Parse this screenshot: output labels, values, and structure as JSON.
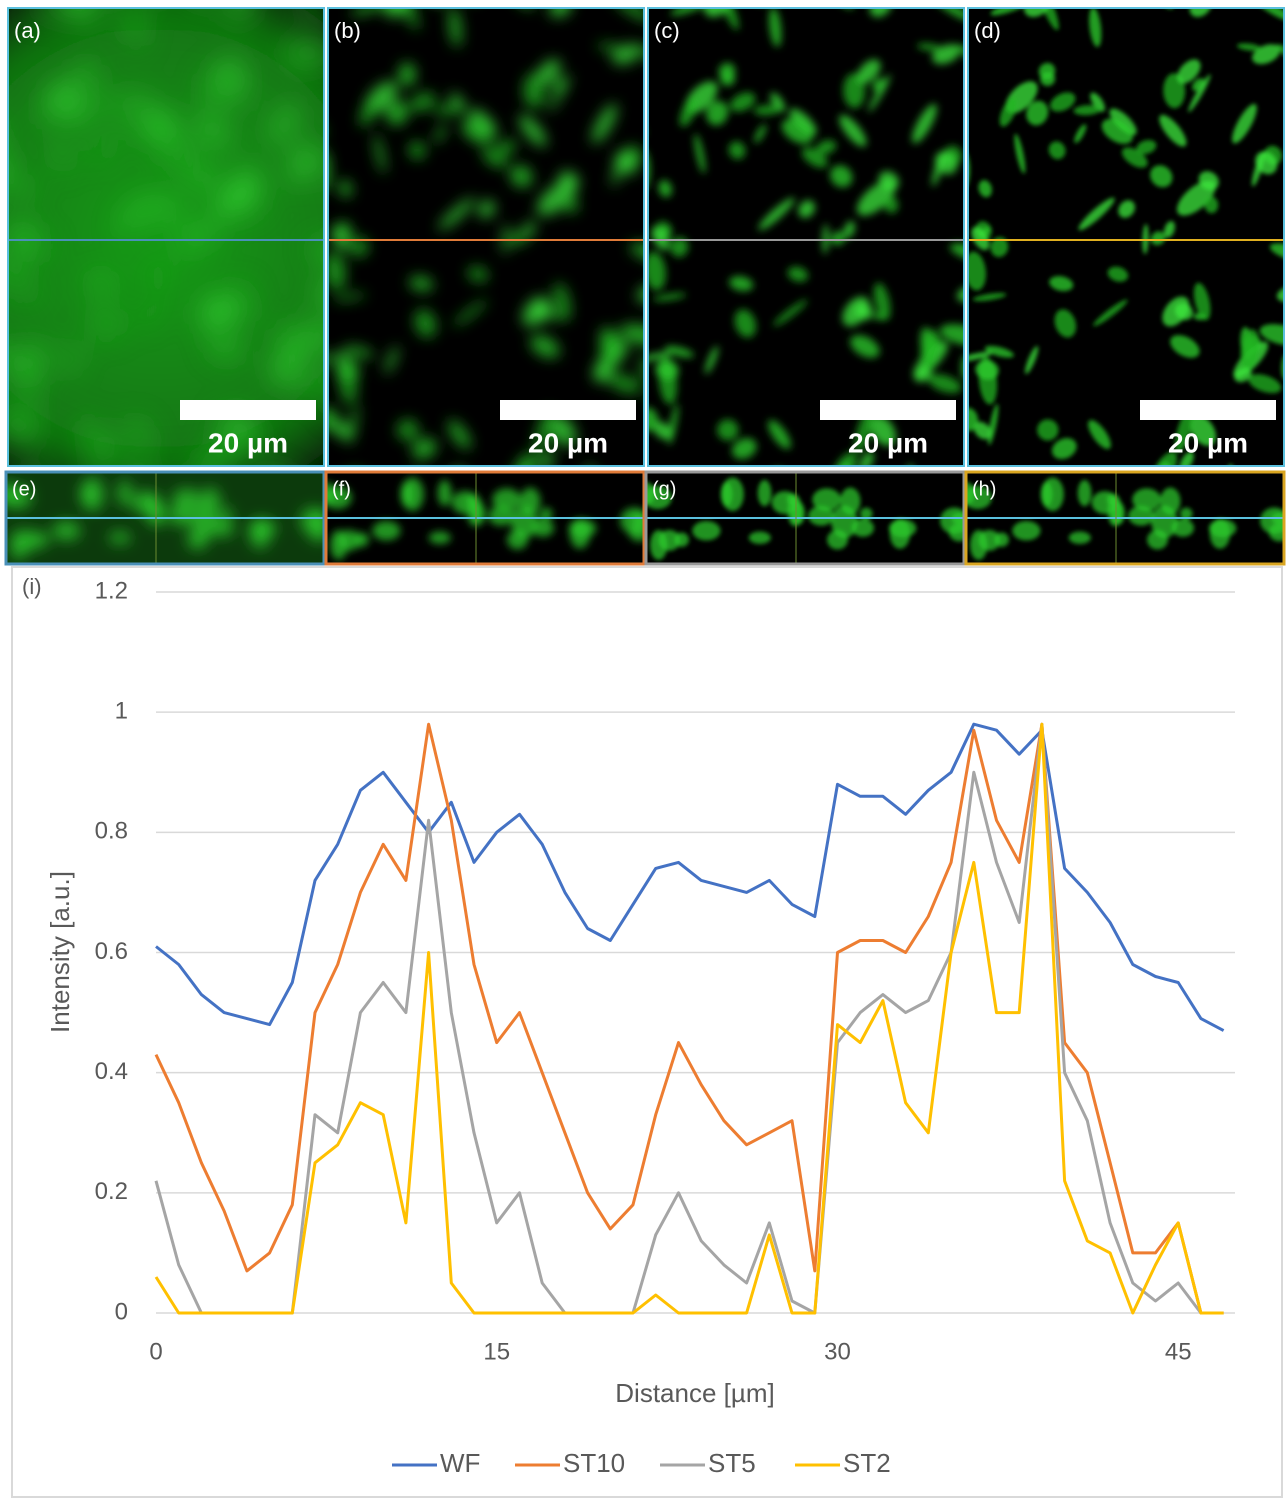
{
  "panels": [
    {
      "label": "(a)",
      "scale": "20 µm"
    },
    {
      "label": "(b)",
      "scale": "20 µm"
    },
    {
      "label": "(c)",
      "scale": "20 µm"
    },
    {
      "label": "(d)",
      "scale": "20 µm"
    }
  ],
  "sections": [
    {
      "label": "(e)"
    },
    {
      "label": "(f)"
    },
    {
      "label": "(g)"
    },
    {
      "label": "(h)"
    }
  ],
  "chart_data": {
    "type": "line",
    "panel_label": "(i)",
    "x_label": "Distance [µm]",
    "y_label": "Intensity [a.u.]",
    "x": [
      0,
      1,
      2,
      3,
      4,
      5,
      6,
      7,
      8,
      9,
      10,
      11,
      12,
      13,
      14,
      15,
      16,
      17,
      18,
      19,
      20,
      21,
      22,
      23,
      24,
      25,
      26,
      27,
      28,
      29,
      30,
      31,
      32,
      33,
      34,
      35,
      36,
      37,
      38,
      39,
      40,
      41,
      42,
      43,
      44,
      45,
      46,
      47
    ],
    "series": [
      {
        "name": "WF",
        "color": "#4472c4",
        "values": [
          0.61,
          0.58,
          0.53,
          0.5,
          0.49,
          0.48,
          0.55,
          0.72,
          0.78,
          0.87,
          0.9,
          0.85,
          0.8,
          0.85,
          0.75,
          0.8,
          0.83,
          0.78,
          0.7,
          0.64,
          0.62,
          0.68,
          0.74,
          0.75,
          0.72,
          0.71,
          0.7,
          0.72,
          0.68,
          0.66,
          0.88,
          0.86,
          0.86,
          0.83,
          0.87,
          0.9,
          0.98,
          0.97,
          0.93,
          0.97,
          0.74,
          0.7,
          0.65,
          0.58,
          0.56,
          0.55,
          0.49,
          0.47
        ]
      },
      {
        "name": "ST10",
        "color": "#ed7d31",
        "values": [
          0.43,
          0.35,
          0.25,
          0.17,
          0.07,
          0.1,
          0.18,
          0.5,
          0.58,
          0.7,
          0.78,
          0.72,
          0.98,
          0.82,
          0.58,
          0.45,
          0.5,
          0.4,
          0.3,
          0.2,
          0.14,
          0.18,
          0.33,
          0.45,
          0.38,
          0.32,
          0.28,
          0.3,
          0.32,
          0.07,
          0.6,
          0.62,
          0.62,
          0.6,
          0.66,
          0.75,
          0.97,
          0.82,
          0.75,
          0.98,
          0.45,
          0.4,
          0.25,
          0.1,
          0.1,
          0.15,
          0,
          0
        ]
      },
      {
        "name": "ST5",
        "color": "#a5a5a5",
        "values": [
          0.22,
          0.08,
          0,
          0,
          0,
          0,
          0,
          0.33,
          0.3,
          0.5,
          0.55,
          0.5,
          0.82,
          0.5,
          0.3,
          0.15,
          0.2,
          0.05,
          0,
          0,
          0,
          0,
          0.13,
          0.2,
          0.12,
          0.08,
          0.05,
          0.15,
          0.02,
          0,
          0.45,
          0.5,
          0.53,
          0.5,
          0.52,
          0.6,
          0.9,
          0.75,
          0.65,
          0.98,
          0.4,
          0.32,
          0.15,
          0.05,
          0.02,
          0.05,
          0,
          0
        ]
      },
      {
        "name": "ST2",
        "color": "#ffc000",
        "values": [
          0.06,
          0,
          0,
          0,
          0,
          0,
          0,
          0.25,
          0.28,
          0.35,
          0.33,
          0.15,
          0.6,
          0.05,
          0,
          0,
          0,
          0,
          0,
          0,
          0,
          0,
          0.03,
          0,
          0,
          0,
          0,
          0.13,
          0,
          0,
          0.48,
          0.45,
          0.52,
          0.35,
          0.3,
          0.6,
          0.75,
          0.5,
          0.5,
          0.98,
          0.22,
          0.12,
          0.1,
          0,
          0.08,
          0.15,
          0,
          0
        ]
      }
    ],
    "xlim": [
      0,
      47.5
    ],
    "xticks": [
      0,
      15,
      30,
      45
    ],
    "ylim": [
      0,
      1.2
    ],
    "yticks": [
      0,
      0.2,
      0.4,
      0.6,
      0.8,
      1,
      1.2
    ],
    "grid": true
  }
}
